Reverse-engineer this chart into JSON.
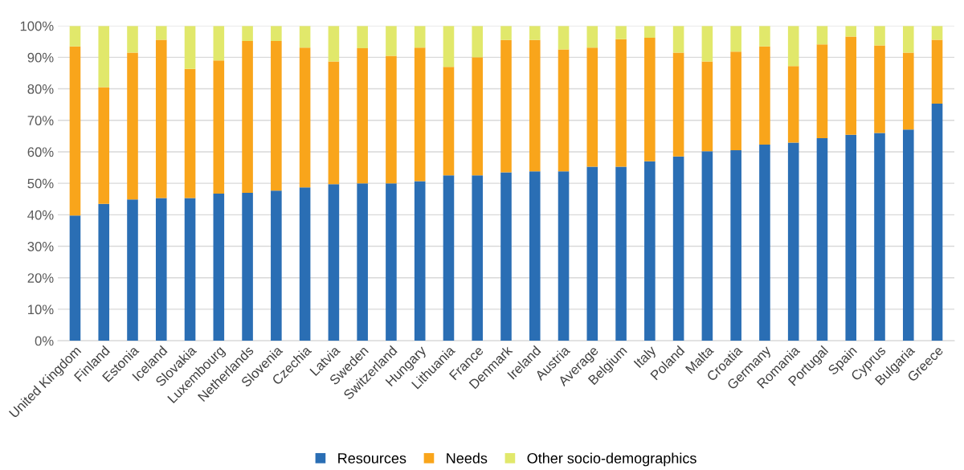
{
  "chart_data": {
    "type": "bar",
    "stacked": true,
    "categories": [
      "United Kingdom",
      "Finland",
      "Estonia",
      "Iceland",
      "Slovakia",
      "Luxembourg",
      "Netherlands",
      "Slovenia",
      "Czechia",
      "Latvia",
      "Sweden",
      "Switzerland",
      "Hungary",
      "Lithuania",
      "France",
      "Denmark",
      "Ireland",
      "Austria",
      "Average",
      "Belgium",
      "Italy",
      "Poland",
      "Malta",
      "Croatia",
      "Germany",
      "Romania",
      "Portugal",
      "Spain",
      "Cyprus",
      "Bulgaria",
      "Greece"
    ],
    "series": [
      {
        "name": "Resources",
        "color": "#2a6eb4",
        "values": [
          39.8,
          43.5,
          44.9,
          45.3,
          45.3,
          46.7,
          47.0,
          47.7,
          48.7,
          49.7,
          50.0,
          50.0,
          50.7,
          52.5,
          52.5,
          53.5,
          53.8,
          53.8,
          55.3,
          55.3,
          57.0,
          58.5,
          60.2,
          60.5,
          62.3,
          62.9,
          64.3,
          65.4,
          66.0,
          67.1,
          75.3
        ]
      },
      {
        "name": "Needs",
        "color": "#f9a51b",
        "values": [
          53.7,
          37.0,
          46.6,
          50.3,
          41.0,
          42.3,
          48.2,
          47.5,
          44.4,
          39.0,
          42.9,
          40.5,
          42.4,
          34.5,
          37.5,
          42.0,
          41.7,
          38.7,
          37.8,
          40.5,
          39.2,
          33.0,
          28.5,
          31.3,
          31.2,
          24.3,
          29.8,
          31.2,
          27.8,
          24.4,
          20.3
        ]
      },
      {
        "name": "Other socio-demographics",
        "color": "#e1e86b",
        "values": [
          6.5,
          19.5,
          8.5,
          4.4,
          13.7,
          11.0,
          4.8,
          4.8,
          6.9,
          11.3,
          7.1,
          9.5,
          6.9,
          13.0,
          10.0,
          4.5,
          4.5,
          7.5,
          6.9,
          4.2,
          3.8,
          8.5,
          11.3,
          8.2,
          6.5,
          12.8,
          5.9,
          3.4,
          6.2,
          8.5,
          4.4
        ]
      }
    ],
    "ylim": [
      0,
      100
    ],
    "yticks": [
      {
        "value": 0,
        "label": "0%"
      },
      {
        "value": 10,
        "label": "10%"
      },
      {
        "value": 20,
        "label": "20%"
      },
      {
        "value": 30,
        "label": "30%"
      },
      {
        "value": 40,
        "label": "40%"
      },
      {
        "value": 50,
        "label": "50%"
      },
      {
        "value": 60,
        "label": "60%"
      },
      {
        "value": 70,
        "label": "70%"
      },
      {
        "value": 80,
        "label": "80%"
      },
      {
        "value": 90,
        "label": "90%"
      },
      {
        "value": 100,
        "label": "100%"
      }
    ],
    "grid": "y",
    "legend": "bottom"
  }
}
